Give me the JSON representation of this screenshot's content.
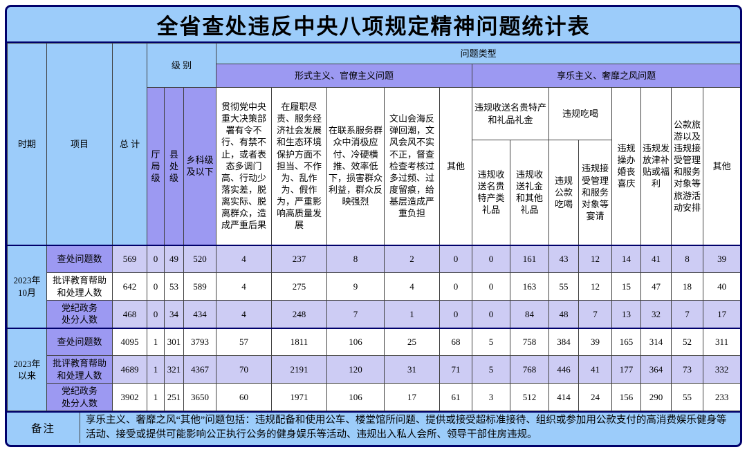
{
  "colors": {
    "frame_border": "#00006b",
    "light_blue": "#9cccfa",
    "purple": "#9c99f2",
    "light_purple": "#cdccf4",
    "grid_line": "#3f3f3f",
    "title_text": "#000000"
  },
  "header": {
    "period": "时期",
    "item": "项目",
    "total": "总 计",
    "level": "级 别",
    "level_cols": [
      "厅局级",
      "县处级",
      "乡科级及以下"
    ],
    "problem_type": "问题类型",
    "formalism_group": "形式主义、官僚主义问题",
    "hedonism_group": "享乐主义、奢靡之风问题",
    "gift_group": "违规收送名贵特产和礼品礼金",
    "dining_group": "违规吃喝"
  },
  "remark": {
    "label": "备注",
    "text": "享乐主义、奢靡之风“其他”问题包括：违规配备和使用公车、楼堂馆所问题、提供或接受超标准接待、组织或参加用公款支付的高消费娱乐健身等活动、接受或提供可能影响公正执行公务的健身娱乐等活动、违规出入私人会所、领导干部住房违规。"
  },
  "chart_data": {
    "type": "table",
    "title": "全省查处违反中央八项规定精神问题统计表",
    "columns": [
      "总计",
      "厅局级",
      "县处级",
      "乡科级及以下",
      "贯彻党中央重大决策部署有令不行、有禁不止，或者表态多调门高、行动少落实差，脱离实际、脱离群众，造成严重后果",
      "在履职尽责、服务经济社会发展和生态环境保护方面不担当、不作为、乱作为、假作为，严重影响高质量发展",
      "在联系服务群众中消极应付、冷硬横推、效率低下，损害群众利益，群众反映强烈",
      "文山会海反弹回潮，文风会风不实不正，督查检查考核过多过频、过度留痕，给基层造成严重负担",
      "其他",
      "违规收送名贵特产类礼品",
      "违规收送礼金和其他礼品",
      "违规公款吃喝",
      "违规接受管理和服务对象等宴请",
      "违规操办婚丧喜庆",
      "违规发放津补贴或福利",
      "公款旅游以及违规接受管理和服务对象等旅游活动安排",
      "其他"
    ],
    "row_labels": [
      "查处问题数",
      "批评教育帮助\n和处理人数",
      "党纪政务\n处分人数"
    ],
    "periods": [
      {
        "label": "2023年\n10月",
        "label_styles": [
          "purple",
          "white",
          "purple"
        ],
        "cell_styles": [
          "lpurple",
          "white",
          "lpurple"
        ],
        "rows": [
          [
            569,
            0,
            49,
            520,
            4,
            237,
            8,
            2,
            0,
            0,
            161,
            43,
            12,
            14,
            41,
            8,
            39
          ],
          [
            642,
            0,
            53,
            589,
            4,
            275,
            9,
            4,
            0,
            0,
            163,
            55,
            12,
            15,
            47,
            18,
            40
          ],
          [
            468,
            0,
            34,
            434,
            4,
            248,
            7,
            1,
            0,
            0,
            84,
            48,
            7,
            13,
            32,
            7,
            17
          ]
        ]
      },
      {
        "label": "2023年\n以来",
        "label_styles": [
          "purple",
          "purple",
          "purple"
        ],
        "cell_styles": [
          "white",
          "lpurple",
          "white"
        ],
        "rows": [
          [
            4095,
            1,
            301,
            3793,
            57,
            1811,
            106,
            25,
            68,
            5,
            758,
            384,
            39,
            165,
            314,
            52,
            311
          ],
          [
            4689,
            1,
            321,
            4367,
            70,
            2191,
            120,
            31,
            71,
            5,
            768,
            446,
            41,
            177,
            364,
            73,
            332
          ],
          [
            3902,
            1,
            251,
            3650,
            60,
            1971,
            106,
            17,
            61,
            3,
            512,
            414,
            24,
            156,
            290,
            55,
            233
          ]
        ]
      }
    ]
  }
}
